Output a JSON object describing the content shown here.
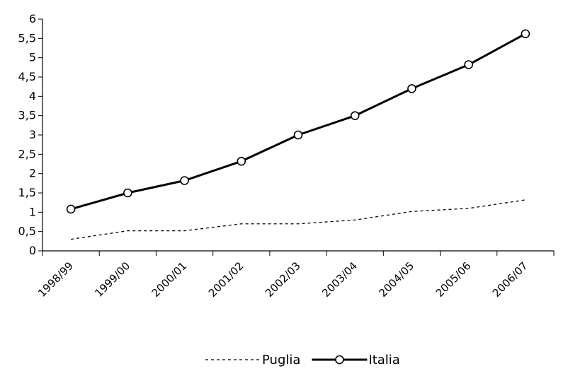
{
  "chart_data": {
    "type": "line",
    "categories": [
      "1998/99",
      "1999/00",
      "2000/01",
      "2001/02",
      "2002/03",
      "2003/04",
      "2004/05",
      "2005/06",
      "2006/07"
    ],
    "y_ticks": [
      "0",
      "0,5",
      "1",
      "1,5",
      "2",
      "2,5",
      "3",
      "3,5",
      "4",
      "4,5",
      "5",
      "5,5",
      "6"
    ],
    "ylim": [
      0,
      6
    ],
    "series": [
      {
        "name": "Puglia",
        "values": [
          0.3,
          0.52,
          0.52,
          0.7,
          0.7,
          0.8,
          1.02,
          1.1,
          1.32
        ],
        "style": "dashed",
        "color": "#000000",
        "markers": false
      },
      {
        "name": "Italia",
        "values": [
          1.08,
          1.5,
          1.82,
          2.32,
          3.0,
          3.5,
          4.2,
          4.82,
          5.62
        ],
        "style": "solid",
        "color": "#000000",
        "markers": true
      }
    ],
    "legend_position": "bottom-center",
    "grid": false
  }
}
